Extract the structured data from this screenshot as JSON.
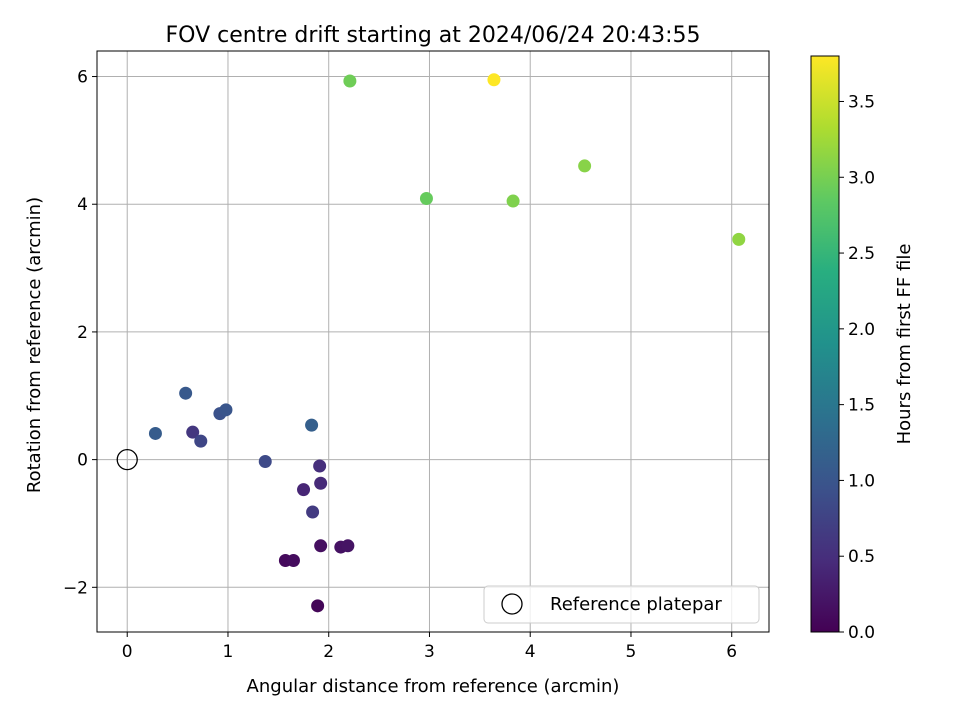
{
  "chart_data": {
    "type": "scatter",
    "title": "FOV centre drift starting at 2024/06/24 20:43:55",
    "xlabel": "Angular distance from reference (arcmin)",
    "ylabel": "Rotation from reference (arcmin)",
    "xlim": [
      -0.3,
      6.37
    ],
    "ylim": [
      -2.7,
      6.4
    ],
    "xticks": [
      0,
      1,
      2,
      3,
      4,
      5,
      6
    ],
    "yticks": [
      -2,
      0,
      2,
      4,
      6
    ],
    "grid": true,
    "legend": {
      "position": "lower-right",
      "entries": [
        "Reference platepar"
      ]
    },
    "reference_point": {
      "x": 0,
      "y": 0
    },
    "colorbar": {
      "label": "Hours from first FF file",
      "colormap": "viridis",
      "range": [
        0,
        3.8
      ],
      "ticks": [
        0.0,
        0.5,
        1.0,
        1.5,
        2.0,
        2.5,
        3.0,
        3.5
      ]
    },
    "points": [
      {
        "x": 1.89,
        "y": -2.29,
        "c": 0.05
      },
      {
        "x": 1.57,
        "y": -1.58,
        "c": 0.1
      },
      {
        "x": 1.65,
        "y": -1.58,
        "c": 0.12
      },
      {
        "x": 1.92,
        "y": -1.35,
        "c": 0.15
      },
      {
        "x": 2.12,
        "y": -1.37,
        "c": 0.18
      },
      {
        "x": 2.19,
        "y": -1.35,
        "c": 0.2
      },
      {
        "x": 1.75,
        "y": -0.47,
        "c": 0.4
      },
      {
        "x": 1.92,
        "y": -0.37,
        "c": 0.45
      },
      {
        "x": 1.91,
        "y": -0.1,
        "c": 0.5
      },
      {
        "x": 0.65,
        "y": 0.43,
        "c": 0.6
      },
      {
        "x": 1.84,
        "y": -0.82,
        "c": 0.65
      },
      {
        "x": 0.73,
        "y": 0.29,
        "c": 0.8
      },
      {
        "x": 1.37,
        "y": -0.03,
        "c": 0.85
      },
      {
        "x": 0.92,
        "y": 0.72,
        "c": 0.95
      },
      {
        "x": 0.98,
        "y": 0.78,
        "c": 1.0
      },
      {
        "x": 0.58,
        "y": 1.04,
        "c": 1.05
      },
      {
        "x": 0.28,
        "y": 0.41,
        "c": 1.1
      },
      {
        "x": 1.83,
        "y": 0.54,
        "c": 1.15
      },
      {
        "x": 2.97,
        "y": 4.09,
        "c": 2.9
      },
      {
        "x": 2.21,
        "y": 5.93,
        "c": 2.95
      },
      {
        "x": 3.83,
        "y": 4.05,
        "c": 3.05
      },
      {
        "x": 4.54,
        "y": 4.6,
        "c": 3.1
      },
      {
        "x": 6.07,
        "y": 3.45,
        "c": 3.15
      },
      {
        "x": 3.64,
        "y": 5.95,
        "c": 3.8
      }
    ]
  }
}
